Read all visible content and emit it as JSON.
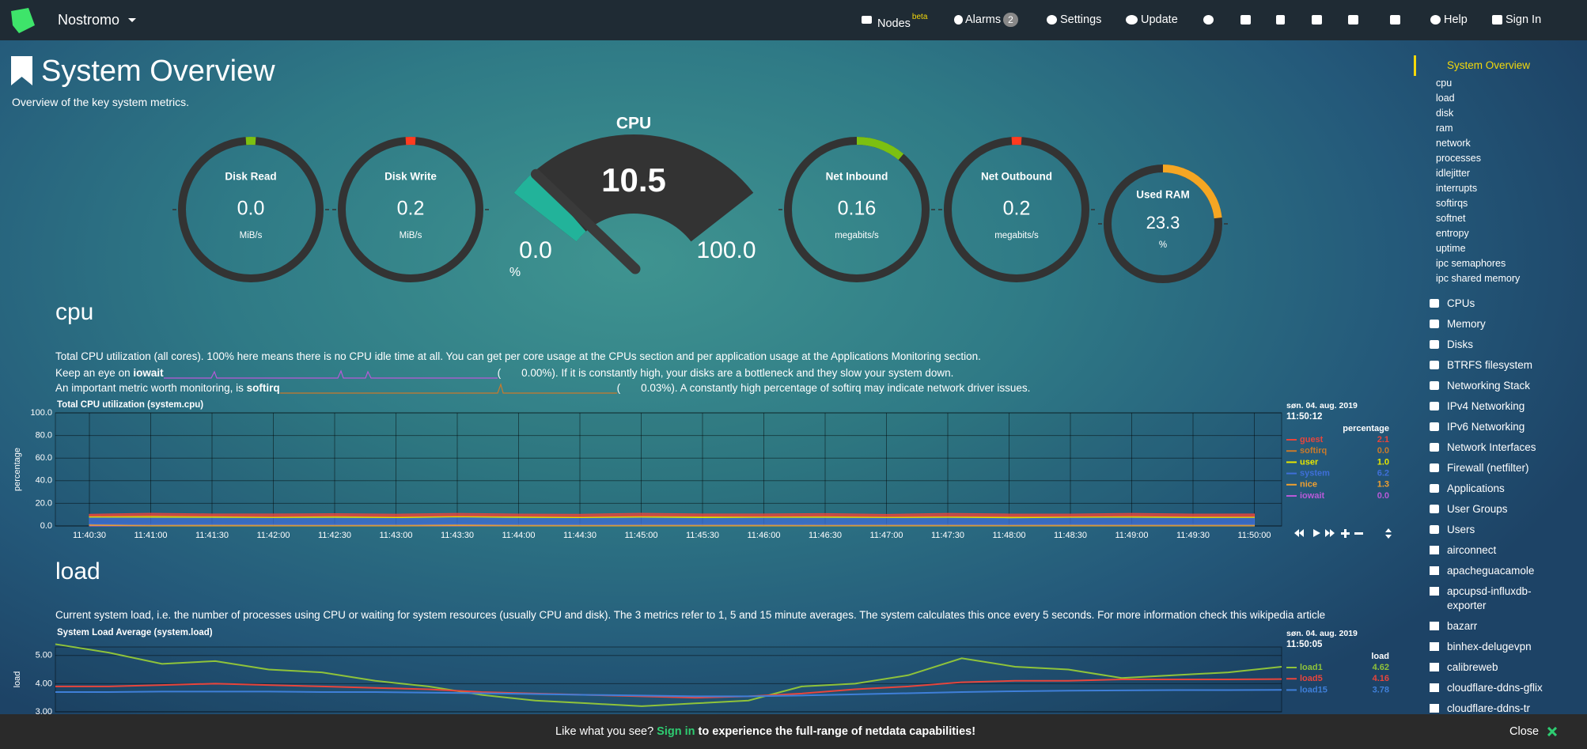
{
  "navbar": {
    "brand": "Nostromo",
    "nodes": "Nodes",
    "nodes_badge": "beta",
    "alarms": "Alarms",
    "alarms_count": "2",
    "settings": "Settings",
    "update": "Update",
    "help": "Help",
    "sign_in": "Sign In"
  },
  "header": {
    "title": "System Overview",
    "subtitle": "Overview of the key system metrics."
  },
  "gauges": [
    {
      "title": "Disk Read",
      "value": "0.0",
      "unit": "MiB/s",
      "color": "#7cc011"
    },
    {
      "title": "Disk Write",
      "value": "0.2",
      "unit": "MiB/s",
      "color": "#ff3b1f"
    },
    {
      "title": "Net Inbound",
      "value": "0.16",
      "unit": "megabits/s",
      "color": "#7cc011"
    },
    {
      "title": "Net Outbound",
      "value": "0.2",
      "unit": "megabits/s",
      "color": "#ff3b1f"
    },
    {
      "title": "Used RAM",
      "value": "23.3",
      "unit": "%",
      "color": "#f5a623"
    }
  ],
  "cpu_gauge": {
    "title": "CPU",
    "value": 10.5,
    "min": {
      "value": 0,
      "label": "0.0"
    },
    "max": {
      "value": 100,
      "label": "100.0"
    },
    "unit": "%",
    "color": "#22b39a"
  },
  "cpu_section": {
    "title": "cpu",
    "description": "Total CPU utilization (all cores). 100% here means there is no CPU idle time at all. You can get per core usage at the CPUs section and per application usage at the Applications Monitoring section.",
    "notes": [
      {
        "prefix": "Keep an eye on",
        "metric": "iowait",
        "open": "(",
        "value": "0.00%",
        "suffix": "). If it is constantly high, your disks are a bottleneck and they slow your system down."
      },
      {
        "prefix": "An important metric worth monitoring, is",
        "metric": "softirq",
        "open": "(",
        "value": "0.03%",
        "suffix": "). A constantly high percentage of softirq may indicate network driver issues."
      }
    ]
  },
  "load_section": {
    "title": "load",
    "description": "Current system load, i.e. the number of processes using CPU or waiting for system resources (usually CPU and disk). The 3 metrics refer to 1, 5 and 15 minute averages. The system calculates this once every 5 seconds. For more information check this wikipedia article"
  },
  "chart_data": [
    {
      "type": "area",
      "stacked": true,
      "title": "Total CPU utilization (system.cpu)",
      "y_label": "percentage",
      "units": "percentage",
      "date": "søn. 04. aug. 2019",
      "time": "11:50:12",
      "x": [
        "11:40:30",
        "11:41:00",
        "11:41:30",
        "11:42:00",
        "11:42:30",
        "11:43:00",
        "11:43:30",
        "11:44:00",
        "11:44:30",
        "11:45:00",
        "11:45:30",
        "11:46:00",
        "11:46:30",
        "11:47:00",
        "11:47:30",
        "11:48:00",
        "11:48:30",
        "11:49:00",
        "11:49:30",
        "11:50:00"
      ],
      "ylim": [
        0,
        100
      ],
      "yticks": [
        {
          "value": 0,
          "label": "0.0"
        },
        {
          "value": 20,
          "label": "20.0"
        },
        {
          "value": 40,
          "label": "40.0"
        },
        {
          "value": 60,
          "label": "60.0"
        },
        {
          "value": 80,
          "label": "80.0"
        },
        {
          "value": 100,
          "label": "100.0"
        }
      ],
      "grid": true,
      "series": [
        {
          "name": "guest",
          "color": "#e8453c",
          "current": "2.1",
          "values": [
            1.5,
            2.0,
            1.8,
            2.2,
            1.9,
            2.0,
            2.1,
            1.8,
            2.0,
            2.3,
            1.9,
            2.0,
            2.1,
            1.8,
            2.4,
            2.0,
            1.9,
            2.2,
            2.0,
            2.1
          ]
        },
        {
          "name": "softirq",
          "color": "#c97a2b",
          "current": "0.0",
          "values": [
            0,
            0,
            0,
            0,
            0,
            0,
            0,
            0,
            0,
            0,
            0,
            0,
            0,
            0,
            0,
            0,
            0,
            0,
            0,
            0
          ]
        },
        {
          "name": "user",
          "color": "#e6e600",
          "current": "1.0",
          "values": [
            1.0,
            1.5,
            1.2,
            1.0,
            1.3,
            1.1,
            1.0,
            1.2,
            1.0,
            1.1,
            1.4,
            1.0,
            1.2,
            1.0,
            1.1,
            1.3,
            1.0,
            1.2,
            1.1,
            1.0
          ]
        },
        {
          "name": "system",
          "color": "#3f6fd8",
          "current": "6.2",
          "values": [
            6.0,
            6.5,
            6.2,
            6.1,
            6.4,
            6.0,
            6.3,
            6.2,
            6.1,
            6.5,
            6.0,
            6.2,
            6.4,
            6.1,
            6.3,
            6.0,
            6.2,
            6.4,
            6.1,
            6.2
          ]
        },
        {
          "name": "nice",
          "color": "#f0a030",
          "current": "1.3",
          "values": [
            1.3,
            1.2,
            1.4,
            1.3,
            1.2,
            1.3,
            1.4,
            1.3,
            1.2,
            1.3,
            1.3,
            1.4,
            1.2,
            1.3,
            1.3,
            1.2,
            1.4,
            1.3,
            1.3,
            1.3
          ]
        },
        {
          "name": "iowait",
          "color": "#b85ad8",
          "current": "0.0",
          "values": [
            0.5,
            0,
            0,
            0,
            0,
            0,
            0.3,
            0,
            0,
            0,
            0,
            0,
            0,
            0,
            0,
            0,
            0,
            0,
            0,
            0
          ]
        }
      ]
    },
    {
      "type": "line",
      "title": "System Load Average (system.load)",
      "y_label": "load",
      "units": "load",
      "date": "søn. 04. aug. 2019",
      "time": "11:50:05",
      "ylim": [
        3,
        5.3
      ],
      "yticks": [
        {
          "value": 3,
          "label": "3.00"
        },
        {
          "value": 4,
          "label": "4.00"
        },
        {
          "value": 5,
          "label": "5.00"
        }
      ],
      "grid": true,
      "series": [
        {
          "name": "load1",
          "color": "#8fc33a",
          "current": "4.62",
          "values": [
            5.4,
            5.1,
            4.7,
            4.8,
            4.5,
            4.4,
            4.1,
            3.9,
            3.6,
            3.4,
            3.3,
            3.2,
            3.3,
            3.4,
            3.9,
            4.0,
            4.3,
            4.9,
            4.6,
            4.5,
            4.2,
            4.3,
            4.4,
            4.6
          ]
        },
        {
          "name": "load5",
          "color": "#e8453c",
          "current": "4.16",
          "values": [
            3.9,
            3.9,
            3.95,
            4.0,
            3.95,
            3.9,
            3.85,
            3.8,
            3.7,
            3.65,
            3.6,
            3.55,
            3.5,
            3.55,
            3.65,
            3.8,
            3.9,
            4.05,
            4.1,
            4.1,
            4.15,
            4.15,
            4.15,
            4.16
          ]
        },
        {
          "name": "load15",
          "color": "#3f7fd8",
          "current": "3.78",
          "values": [
            3.7,
            3.7,
            3.72,
            3.72,
            3.72,
            3.7,
            3.7,
            3.68,
            3.66,
            3.63,
            3.6,
            3.58,
            3.55,
            3.55,
            3.58,
            3.62,
            3.66,
            3.7,
            3.73,
            3.75,
            3.76,
            3.77,
            3.77,
            3.78
          ]
        }
      ]
    }
  ],
  "sidebar": {
    "active": "System Overview",
    "subitems": [
      "cpu",
      "load",
      "disk",
      "ram",
      "network",
      "processes",
      "idlejitter",
      "interrupts",
      "softirqs",
      "softnet",
      "entropy",
      "uptime",
      "ipc semaphores",
      "ipc shared memory"
    ],
    "sections": [
      "CPUs",
      "Memory",
      "Disks",
      "BTRFS filesystem",
      "Networking Stack",
      "IPv4 Networking",
      "IPv6 Networking",
      "Network Interfaces",
      "Firewall (netfilter)",
      "Applications",
      "User Groups",
      "Users",
      "airconnect",
      "apacheguacamole",
      "apcupsd-influxdb-exporter",
      "bazarr",
      "binhex-delugevpn",
      "calibreweb",
      "cloudflare-ddns-gflix",
      "cloudflare-ddns-tr"
    ]
  },
  "banner": {
    "before": "Like what you see?",
    "link": "Sign in",
    "after": "to experience the full-range of netdata capabilities!",
    "close": "Close"
  }
}
